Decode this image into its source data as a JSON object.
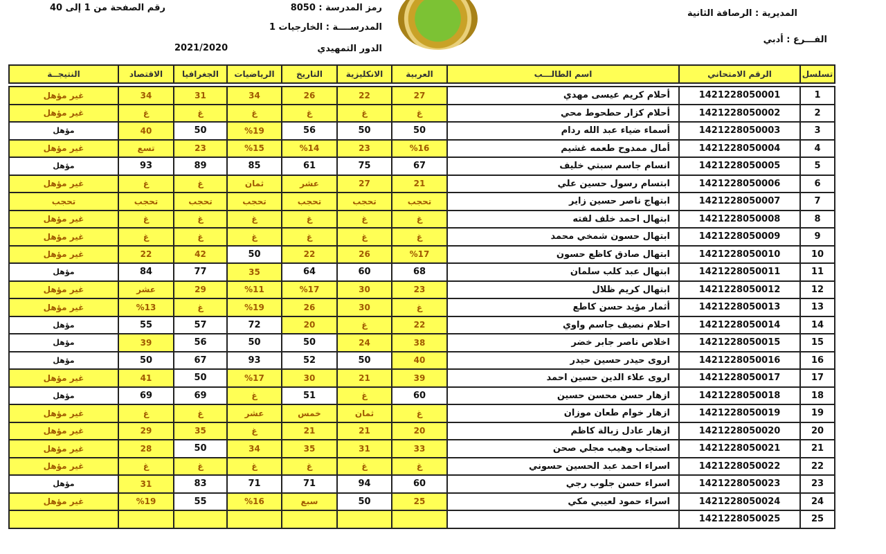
{
  "header": {
    "directorate_label": "المديرية :",
    "directorate": "الرصافة الثانية",
    "branch_label": "الفـــرع :",
    "branch": "أدبي",
    "school_code_label": "رمز المدرسة :",
    "school_code": "8050",
    "school_label": "المدرســــة :",
    "school": "الخارجيات 1",
    "round_label": "الدور",
    "round": "التمهيدي",
    "year": "2021/2020",
    "page_label": "رقم الصفحة من",
    "page_from": "1",
    "page_to_label": "إلى",
    "page_to": "40"
  },
  "colors": {
    "fail": "#ffff55",
    "pass": "#ffffff"
  },
  "columns": [
    "تسلسل",
    "الرقم الامتحاني",
    "اسم الطالـــب",
    "العربية",
    "الانكليزية",
    "التاريخ",
    "الرياضيات",
    "الجغرافيا",
    "الاقتصاد",
    "النتيجــة"
  ],
  "rows": [
    {
      "n": "1",
      "id": "1421228050001",
      "name": "أحلام كريم عيسى مهدي",
      "m": [
        "27",
        "22",
        "26",
        "34",
        "31",
        "34"
      ],
      "r": "غير مؤهل"
    },
    {
      "n": "2",
      "id": "1421228050002",
      "name": "أحلام كزار حطحوط محي",
      "m": [
        "غ",
        "غ",
        "غ",
        "غ",
        "غ",
        "غ"
      ],
      "r": "غير مؤهل"
    },
    {
      "n": "3",
      "id": "1421228050003",
      "name": "أسماء ضياء عبد الله ردام",
      "m": [
        "50",
        "50",
        "56",
        "%19",
        "50",
        "40"
      ],
      "r": "مؤهل"
    },
    {
      "n": "4",
      "id": "1421228050004",
      "name": "أمال ممدوح طعمه غشيم",
      "m": [
        "%16",
        "23",
        "%14",
        "%15",
        "23",
        "تسع"
      ],
      "r": "غير مؤهل"
    },
    {
      "n": "5",
      "id": "1421228050005",
      "name": "انسام جاسم سبتي خليف",
      "m": [
        "67",
        "75",
        "61",
        "85",
        "89",
        "93"
      ],
      "r": "مؤهل"
    },
    {
      "n": "6",
      "id": "1421228050006",
      "name": "ابتسام رسول حسين علي",
      "m": [
        "21",
        "27",
        "عشر",
        "ثمان",
        "غ",
        "غ"
      ],
      "r": "غير مؤهل"
    },
    {
      "n": "7",
      "id": "1421228050007",
      "name": "ابتهاج ناصر حسين زاير",
      "m": [
        "تحجب",
        "تحجب",
        "تحجب",
        "تحجب",
        "تحجب",
        "تحجب"
      ],
      "r": "تحجب"
    },
    {
      "n": "8",
      "id": "1421228050008",
      "name": "ابتهال احمد خلف لفته",
      "m": [
        "غ",
        "غ",
        "غ",
        "غ",
        "غ",
        "غ"
      ],
      "r": "غير مؤهل"
    },
    {
      "n": "9",
      "id": "1421228050009",
      "name": "ابتهال حسون شمخي محمد",
      "m": [
        "غ",
        "غ",
        "غ",
        "غ",
        "غ",
        "غ"
      ],
      "r": "غير مؤهل"
    },
    {
      "n": "10",
      "id": "1421228050010",
      "name": "ابتهال صادق كاظع حسون",
      "m": [
        "%17",
        "26",
        "22",
        "50",
        "42",
        "22"
      ],
      "r": "غير مؤهل"
    },
    {
      "n": "11",
      "id": "1421228050011",
      "name": "ابتهال عبد كلب سلمان",
      "m": [
        "68",
        "60",
        "64",
        "35",
        "77",
        "84"
      ],
      "r": "مؤهل"
    },
    {
      "n": "12",
      "id": "1421228050012",
      "name": "ابتهال كريم ظلال",
      "m": [
        "23",
        "30",
        "%17",
        "%11",
        "29",
        "عشر"
      ],
      "r": "غير مؤهل"
    },
    {
      "n": "13",
      "id": "1421228050013",
      "name": "أثمار مؤيد حسن كاطع",
      "m": [
        "غ",
        "30",
        "26",
        "%19",
        "غ",
        "%13"
      ],
      "r": "غير مؤهل"
    },
    {
      "n": "14",
      "id": "1421228050014",
      "name": "احلام نصيف جاسم واوي",
      "m": [
        "22",
        "غ",
        "20",
        "72",
        "57",
        "55"
      ],
      "r": "مؤهل"
    },
    {
      "n": "15",
      "id": "1421228050015",
      "name": "اخلاص ناصر جابر خضر",
      "m": [
        "38",
        "24",
        "50",
        "50",
        "56",
        "39"
      ],
      "r": "مؤهل"
    },
    {
      "n": "16",
      "id": "1421228050016",
      "name": "اروى حيدر حسين حيدر",
      "m": [
        "40",
        "50",
        "52",
        "93",
        "67",
        "50"
      ],
      "r": "مؤهل"
    },
    {
      "n": "17",
      "id": "1421228050017",
      "name": "اروى علاء الدين حسين احمد",
      "m": [
        "39",
        "21",
        "30",
        "%17",
        "50",
        "41"
      ],
      "r": "غير مؤهل"
    },
    {
      "n": "18",
      "id": "1421228050018",
      "name": "ازهار حسن محسن حسين",
      "m": [
        "60",
        "غ",
        "51",
        "غ",
        "69",
        "69"
      ],
      "r": "مؤهل"
    },
    {
      "n": "19",
      "id": "1421228050019",
      "name": "ازهار خوام طعان موزان",
      "m": [
        "غ",
        "ثمان",
        "خمس",
        "عشر",
        "غ",
        "غ"
      ],
      "r": "غير مؤهل"
    },
    {
      "n": "20",
      "id": "1421228050020",
      "name": "ازهار عادل زبالة كاظم",
      "m": [
        "20",
        "21",
        "21",
        "غ",
        "35",
        "29"
      ],
      "r": "غير مؤهل"
    },
    {
      "n": "21",
      "id": "1421228050021",
      "name": "استجاب وهيب مجلي صحن",
      "m": [
        "33",
        "31",
        "35",
        "34",
        "50",
        "28"
      ],
      "r": "غير مؤهل"
    },
    {
      "n": "22",
      "id": "1421228050022",
      "name": "اسراء احمد عبد الحسين حسوني",
      "m": [
        "غ",
        "غ",
        "غ",
        "غ",
        "غ",
        "غ"
      ],
      "r": "غير مؤهل"
    },
    {
      "n": "23",
      "id": "1421228050023",
      "name": "اسراء حسن جلوب رجي",
      "m": [
        "60",
        "94",
        "71",
        "71",
        "83",
        "31"
      ],
      "r": "مؤهل"
    },
    {
      "n": "24",
      "id": "1421228050024",
      "name": "اسراء حمود لعيبي مكي",
      "m": [
        "25",
        "50",
        "سبع",
        "%16",
        "55",
        "%19"
      ],
      "r": "غير مؤهل"
    },
    {
      "n": "25",
      "id": "1421228050025",
      "name": "",
      "m": [
        "",
        "",
        "",
        "",
        "",
        ""
      ],
      "r": ""
    }
  ]
}
